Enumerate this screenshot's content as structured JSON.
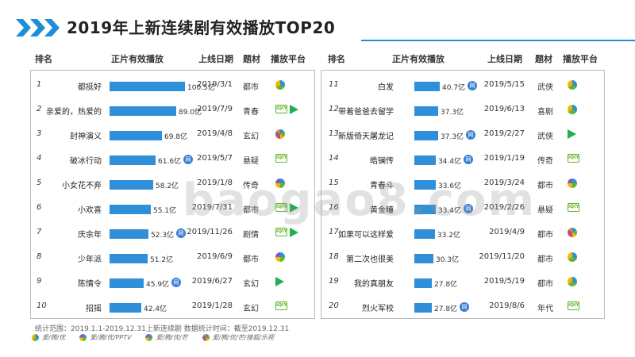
{
  "title": "2019年上新连续剧有效播放TOP20",
  "headers": {
    "rank": "排名",
    "views": "正片有效播放",
    "date": "上线日期",
    "genre": "题材",
    "platform": "播放平台"
  },
  "watermark": "baogao8.com",
  "footer": {
    "note": "统计范围：2019.1.1-2019.12.31上新连续剧   数据统计时间：截至2019.12.31",
    "legend": [
      {
        "icon": "pie-blue-green-yellow-icon",
        "label": "爱/腾/优"
      },
      {
        "icon": "pie-blue-green-yellow-purple-icon",
        "label": "爱/腾/优/PPTV"
      },
      {
        "icon": "pie-quad-icon",
        "label": "爱/腾/优/芒"
      },
      {
        "icon": "pie-multi-icon",
        "label": "爱/腾/优/芒/搜狐/乐视"
      }
    ]
  },
  "colors": {
    "accent": "#2f8fd8",
    "iqiyi": "#66b52c",
    "tencent": "#22b04a",
    "badge": "#3a7fd4"
  },
  "chart_data": {
    "type": "bar",
    "unit": "亿",
    "max_value": 100.5,
    "rows": [
      {
        "rank": "1",
        "name": "都挺好",
        "value": 100.5,
        "label": "100.5亿",
        "date": "2019/3/1",
        "genre": "都市",
        "platform": [
          "pie3"
        ],
        "badge": false
      },
      {
        "rank": "2",
        "name": "亲爱的，热爱的",
        "value": 89.0,
        "label": "89.0亿",
        "date": "2019/7/9",
        "genre": "青春",
        "platform": [
          "iqiyi",
          "tencent"
        ],
        "badge": false
      },
      {
        "rank": "3",
        "name": "封神演义",
        "value": 69.8,
        "label": "69.8亿",
        "date": "2019/4/8",
        "genre": "玄幻",
        "platform": [
          "pie6"
        ],
        "badge": false
      },
      {
        "rank": "4",
        "name": "破冰行动",
        "value": 61.6,
        "label": "61.6亿",
        "date": "2019/5/7",
        "genre": "悬疑",
        "platform": [
          "iqiyi"
        ],
        "badge": true
      },
      {
        "rank": "5",
        "name": "小女花不弃",
        "value": 58.2,
        "label": "58.2亿",
        "date": "2019/1/8",
        "genre": "传奇",
        "platform": [
          "pie4"
        ],
        "badge": false
      },
      {
        "rank": "6",
        "name": "小欢喜",
        "value": 55.1,
        "label": "55.1亿",
        "date": "2019/7/31",
        "genre": "都市",
        "platform": [
          "iqiyi",
          "tencent"
        ],
        "badge": false
      },
      {
        "rank": "7",
        "name": "庆余年",
        "value": 52.3,
        "label": "52.3亿",
        "date": "2019/11/26",
        "genre": "剧情",
        "platform": [
          "iqiyi",
          "tencent"
        ],
        "badge": true
      },
      {
        "rank": "8",
        "name": "少年派",
        "value": 51.2,
        "label": "51.2亿",
        "date": "2019/6/9",
        "genre": "都市",
        "platform": [
          "pie4"
        ],
        "badge": false
      },
      {
        "rank": "9",
        "name": "陈情令",
        "value": 45.9,
        "label": "45.9亿",
        "date": "2019/6/27",
        "genre": "玄幻",
        "platform": [
          "tencent"
        ],
        "badge": true
      },
      {
        "rank": "10",
        "name": "招摇",
        "value": 42.4,
        "label": "42.4亿",
        "date": "2019/1/28",
        "genre": "玄幻",
        "platform": [
          "iqiyi"
        ],
        "badge": false
      },
      {
        "rank": "11",
        "name": "白发",
        "value": 40.7,
        "label": "40.7亿",
        "date": "2019/5/15",
        "genre": "武侠",
        "platform": [
          "pie3"
        ],
        "badge": true
      },
      {
        "rank": "12",
        "name": "带着爸爸去留学",
        "value": 37.3,
        "label": "37.3亿",
        "date": "2019/6/13",
        "genre": "喜剧",
        "platform": [
          "pie3"
        ],
        "badge": false
      },
      {
        "rank": "13",
        "name": "新版倚天屠龙记",
        "value": 37.3,
        "label": "37.3亿",
        "date": "2019/2/27",
        "genre": "武侠",
        "platform": [
          "tencent"
        ],
        "badge": true
      },
      {
        "rank": "14",
        "name": "皓镧传",
        "value": 34.4,
        "label": "34.4亿",
        "date": "2019/1/19",
        "genre": "传奇",
        "platform": [
          "iqiyi"
        ],
        "badge": true
      },
      {
        "rank": "15",
        "name": "青春斗",
        "value": 33.6,
        "label": "33.6亿",
        "date": "2019/3/24",
        "genre": "都市",
        "platform": [
          "pie4"
        ],
        "badge": false
      },
      {
        "rank": "16",
        "name": "黄金瞳",
        "value": 33.4,
        "label": "33.4亿",
        "date": "2019/2/26",
        "genre": "悬疑",
        "platform": [
          "iqiyi"
        ],
        "badge": true
      },
      {
        "rank": "17",
        "name": "如果可以这样爱",
        "value": 33.2,
        "label": "33.2亿",
        "date": "2019/4/9",
        "genre": "都市",
        "platform": [
          "pie6"
        ],
        "badge": false
      },
      {
        "rank": "18",
        "name": "第二次也很美",
        "value": 30.3,
        "label": "30.3亿",
        "date": "2019/11/20",
        "genre": "都市",
        "platform": [
          "pie3"
        ],
        "badge": false
      },
      {
        "rank": "19",
        "name": "我的真朋友",
        "value": 27.8,
        "label": "27.8亿",
        "date": "2019/5/19",
        "genre": "都市",
        "platform": [
          "pie3"
        ],
        "badge": false
      },
      {
        "rank": "20",
        "name": "烈火军校",
        "value": 27.8,
        "label": "27.8亿",
        "date": "2019/8/6",
        "genre": "年代",
        "platform": [
          "iqiyi"
        ],
        "badge": true
      }
    ]
  }
}
